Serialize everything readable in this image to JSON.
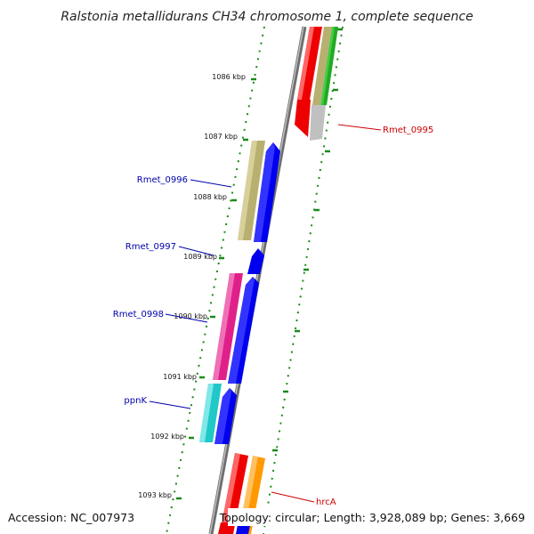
{
  "title": "Ralstonia metallidurans CH34 chromosome 1, complete sequence",
  "accession": "Accession: NC_007973",
  "topology": "Topology: circular; Length: 3,928,089 bp; Genes: 3,669",
  "kbp_labels": [
    "1086 kbp",
    "1087 kbp",
    "1088 kbp",
    "1089 kbp",
    "1090 kbp",
    "1091 kbp",
    "1092 kbp",
    "1093 kbp"
  ],
  "gene_labels": {
    "rmet0995": "Rmet_0995",
    "rmet0996": "Rmet_0996",
    "rmet0997": "Rmet_0997",
    "rmet0998": "Rmet_0998",
    "ppnk": "ppnK",
    "hrca": "hrcA"
  },
  "colors": {
    "backbone": "#8a8a8a",
    "tick": "#1a8a1a",
    "forward_cds": "#0000ee",
    "label_blue": "#0000aa",
    "label_red": "#cc0000",
    "red_gene": "#ee0000",
    "olive_gene": "#b8b070",
    "green_gene": "#44cc44",
    "grey_gene": "#c0c0c0",
    "magenta_gene": "#e0208a",
    "cyan_gene": "#20c8c8",
    "orange_gene": "#ff9900"
  }
}
